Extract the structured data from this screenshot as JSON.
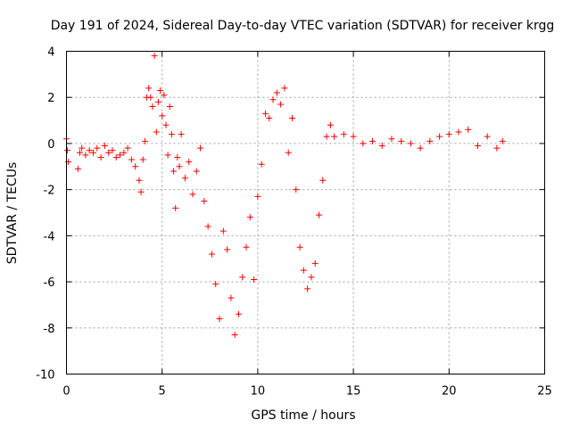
{
  "chart_data": {
    "type": "scatter",
    "title": "Day 191 of 2024, Sidereal Day-to-day VTEC variation (SDTVAR) for receiver krgg",
    "xlabel": "GPS time / hours",
    "ylabel": "SDTVAR / TECUs",
    "xlim": [
      0,
      25
    ],
    "ylim": [
      -10,
      4
    ],
    "xticks": [
      "0",
      "5",
      "10",
      "15",
      "20",
      "25"
    ],
    "yticks": [
      "-10",
      "-8",
      "-6",
      "-4",
      "-2",
      "0",
      "2",
      "4"
    ],
    "grid": true,
    "marker": "+",
    "marker_color": "#ff0000",
    "series": [
      {
        "name": "SDTVAR",
        "x": [
          0.0,
          0.05,
          0.1,
          0.6,
          0.7,
          0.8,
          1.0,
          1.2,
          1.4,
          1.6,
          1.8,
          2.0,
          2.2,
          2.4,
          2.6,
          2.8,
          3.0,
          3.2,
          3.4,
          3.6,
          3.8,
          3.9,
          4.0,
          4.1,
          4.2,
          4.3,
          4.4,
          4.5,
          4.6,
          4.7,
          4.8,
          4.9,
          5.0,
          5.1,
          5.2,
          5.3,
          5.4,
          5.5,
          5.6,
          5.7,
          5.8,
          5.9,
          6.0,
          6.2,
          6.4,
          6.6,
          6.8,
          7.0,
          7.2,
          7.4,
          7.6,
          7.8,
          8.0,
          8.2,
          8.4,
          8.6,
          8.8,
          9.0,
          9.2,
          9.4,
          9.6,
          9.8,
          10.0,
          10.2,
          10.4,
          10.6,
          10.8,
          11.0,
          11.2,
          11.4,
          11.6,
          11.8,
          12.0,
          12.2,
          12.4,
          12.6,
          12.8,
          13.0,
          13.2,
          13.4,
          13.6,
          13.8,
          14.0,
          14.5,
          15.0,
          15.5,
          16.0,
          16.5,
          17.0,
          17.5,
          18.0,
          18.5,
          19.0,
          19.5,
          20.0,
          20.5,
          21.0,
          21.5,
          22.0,
          22.5,
          22.8
        ],
        "y": [
          0.2,
          -0.3,
          -0.8,
          -1.1,
          -0.4,
          -0.2,
          -0.5,
          -0.3,
          -0.4,
          -0.2,
          -0.6,
          -0.1,
          -0.4,
          -0.3,
          -0.6,
          -0.5,
          -0.4,
          -0.2,
          -0.7,
          -1.0,
          -1.6,
          -2.1,
          -0.7,
          0.1,
          2.0,
          2.4,
          2.0,
          1.6,
          3.8,
          0.5,
          1.8,
          2.3,
          1.2,
          2.1,
          0.8,
          -0.5,
          1.6,
          0.4,
          -1.2,
          -2.8,
          -0.6,
          -1.0,
          0.4,
          -1.5,
          -0.8,
          -2.2,
          -1.2,
          -0.2,
          -2.5,
          -3.6,
          -4.8,
          -6.1,
          -7.6,
          -3.8,
          -4.6,
          -6.7,
          -8.3,
          -7.4,
          -5.8,
          -4.5,
          -3.2,
          -5.9,
          -2.3,
          -0.9,
          1.3,
          1.1,
          1.9,
          2.2,
          1.7,
          2.4,
          -0.4,
          1.1,
          -2.0,
          -4.5,
          -5.5,
          -6.3,
          -5.8,
          -5.2,
          -3.1,
          -1.6,
          0.3,
          0.8,
          0.3,
          0.4,
          0.3,
          0.0,
          0.1,
          -0.1,
          0.2,
          0.1,
          0.0,
          -0.2,
          0.1,
          0.3,
          0.4,
          0.5,
          0.6,
          -0.1,
          0.3,
          -0.2,
          0.1
        ]
      }
    ]
  }
}
